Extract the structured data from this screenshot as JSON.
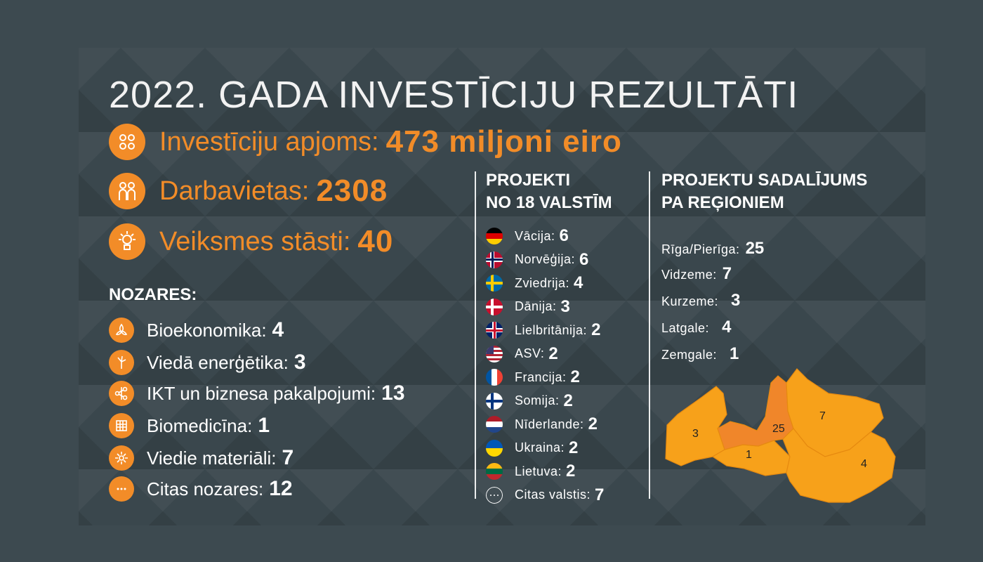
{
  "title": "2022. GADA INVESTĪCIJU REZULTĀTI",
  "colors": {
    "accent": "#f28c28",
    "background": "#3d4a50",
    "map_fill": "#f7a11a",
    "map_riga": "#f0862a"
  },
  "kpis": [
    {
      "label": "Investīciju apjoms:",
      "value": "473 miljoni eiro",
      "icon": "coins-icon"
    },
    {
      "label": "Darbavietas:",
      "value": "2308",
      "icon": "people-icon"
    },
    {
      "label": "Veiksmes stāsti:",
      "value": "40",
      "icon": "lightbulb-icon"
    }
  ],
  "sectors": {
    "heading": "NOZARES:",
    "items": [
      {
        "label": "Bioekonomika:",
        "value": "4",
        "icon": "leaves-icon"
      },
      {
        "label": "Viedā enerģētika:",
        "value": "3",
        "icon": "wind-turbine-icon"
      },
      {
        "label": "IKT un biznesa pakalpojumi:",
        "value": "13",
        "icon": "network-icon"
      },
      {
        "label": "Biomedicīna:",
        "value": "1",
        "icon": "dna-icon"
      },
      {
        "label": "Viedie materiāli:",
        "value": "7",
        "icon": "molecule-icon"
      },
      {
        "label": "Citas nozares:",
        "value": "12",
        "icon": "dots-icon"
      }
    ]
  },
  "countries": {
    "heading_line1": "PROJEKTI",
    "heading_line2": "NO 18 VALSTĪM",
    "items": [
      {
        "label": "Vācija:",
        "value": "6",
        "flag": "de"
      },
      {
        "label": "Norvēģija:",
        "value": "6",
        "flag": "no"
      },
      {
        "label": "Zviedrija:",
        "value": "4",
        "flag": "se"
      },
      {
        "label": "Dānija:",
        "value": "3",
        "flag": "dk"
      },
      {
        "label": "Lielbritānija:",
        "value": "2",
        "flag": "gb"
      },
      {
        "label": "ASV:",
        "value": "2",
        "flag": "us"
      },
      {
        "label": "Francija:",
        "value": "2",
        "flag": "fr"
      },
      {
        "label": "Somija:",
        "value": "2",
        "flag": "fi"
      },
      {
        "label": "Nīderlande:",
        "value": "2",
        "flag": "nl"
      },
      {
        "label": "Ukraina:",
        "value": "2",
        "flag": "ua"
      },
      {
        "label": "Lietuva:",
        "value": "2",
        "flag": "lt"
      },
      {
        "label": "Citas valstis:",
        "value": "7",
        "flag": "other"
      }
    ]
  },
  "regions": {
    "heading_line1": "PROJEKTU SADALĪJUMS",
    "heading_line2": "PA REĢIONIEM",
    "items": [
      {
        "label": "Rīga/Pierīga:",
        "value": "25"
      },
      {
        "label": "Vidzeme:",
        "value": "7"
      },
      {
        "label": "Kurzeme:",
        "value": "3"
      },
      {
        "label": "Latgale:",
        "value": "4"
      },
      {
        "label": "Zemgale:",
        "value": "1"
      }
    ],
    "map_labels": {
      "kurzeme": "3",
      "riga": "25",
      "vidzeme": "7",
      "zemgale": "1",
      "latgale": "4"
    }
  }
}
